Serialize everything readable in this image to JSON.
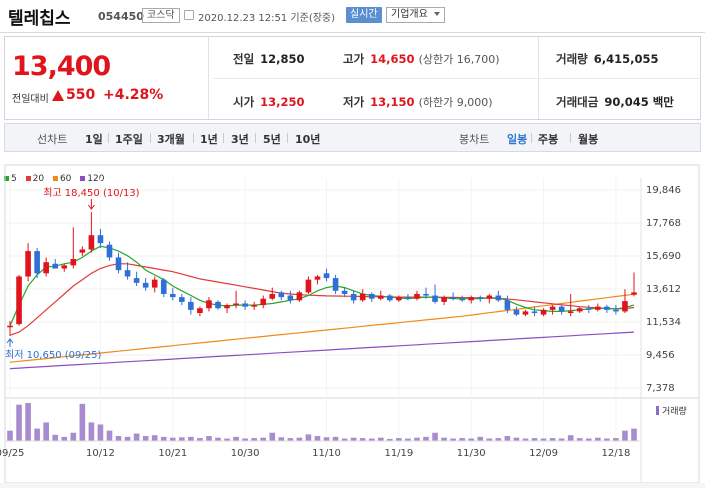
{
  "header": {
    "name": "텔레칩스",
    "code": "054450",
    "market": "코스닥",
    "time": "2020.12.23 12:51 기준(장중)",
    "realtime": "실시간",
    "overview": "기업개요"
  },
  "quote": {
    "price": "13,400",
    "change_label": "전일대비",
    "change": "550",
    "change_pct": "+4.28%",
    "prev_label": "전일",
    "prev": "12,850",
    "high_label": "고가",
    "high": "14,650",
    "upper_limit": "(상한가 16,700)",
    "volume_label": "거래량",
    "volume": "6,415,055",
    "open_label": "시가",
    "open": "13,250",
    "low_label": "저가",
    "low": "13,150",
    "lower_limit": "(하한가 9,000)",
    "amount_label": "거래대금",
    "amount": "90,045 백만"
  },
  "tabs": {
    "line_label": "선차트",
    "line_periods": [
      "1일",
      "1주일",
      "3개월",
      "1년",
      "3년",
      "5년",
      "10년"
    ],
    "candle_label": "봉차트",
    "candle_periods": [
      "일봉",
      "주봉",
      "월봉"
    ],
    "selected": "일봉"
  },
  "chart_data": {
    "type": "candlestick",
    "legend": [
      {
        "name": "5",
        "color": "#26a62b"
      },
      {
        "name": "20",
        "color": "#e03a3a"
      },
      {
        "name": "60",
        "color": "#f08a1c"
      },
      {
        "name": "120",
        "color": "#8b4fc0"
      }
    ],
    "y_ticks": [
      19846,
      17768,
      15690,
      13612,
      11534,
      9456,
      7378
    ],
    "y_tick_labels": [
      "19,846",
      "17,768",
      "15,690",
      "13,612",
      "11,534",
      "9,456",
      "7,378"
    ],
    "x_tick_labels": [
      "09/25",
      "10/12",
      "10/21",
      "10/30",
      "11/10",
      "11/19",
      "11/30",
      "12/09",
      "12/18"
    ],
    "high_annotation": "최고 18,450 (10/13)",
    "low_annotation": "최저 10,650 (09/25)",
    "volume_label": "거래량",
    "candles": [
      {
        "o": 11200,
        "h": 11600,
        "l": 10650,
        "c": 11300
      },
      {
        "o": 11400,
        "h": 14500,
        "l": 11300,
        "c": 14400
      },
      {
        "o": 14400,
        "h": 16500,
        "l": 14100,
        "c": 16000
      },
      {
        "o": 16000,
        "h": 16200,
        "l": 14300,
        "c": 14600
      },
      {
        "o": 14600,
        "h": 15600,
        "l": 14400,
        "c": 15300
      },
      {
        "o": 15200,
        "h": 15500,
        "l": 14900,
        "c": 14900
      },
      {
        "o": 14900,
        "h": 15200,
        "l": 14700,
        "c": 15100
      },
      {
        "o": 15100,
        "h": 17500,
        "l": 14900,
        "c": 15500
      },
      {
        "o": 15900,
        "h": 16300,
        "l": 15700,
        "c": 16100
      },
      {
        "o": 16100,
        "h": 18450,
        "l": 15900,
        "c": 17000
      },
      {
        "o": 17000,
        "h": 17400,
        "l": 16200,
        "c": 16500
      },
      {
        "o": 16400,
        "h": 16600,
        "l": 15400,
        "c": 15600
      },
      {
        "o": 15600,
        "h": 15900,
        "l": 14600,
        "c": 14800
      },
      {
        "o": 14800,
        "h": 15300,
        "l": 14200,
        "c": 14400
      },
      {
        "o": 14300,
        "h": 14700,
        "l": 13800,
        "c": 14000
      },
      {
        "o": 14000,
        "h": 14300,
        "l": 13500,
        "c": 13700
      },
      {
        "o": 13700,
        "h": 14400,
        "l": 13400,
        "c": 14200
      },
      {
        "o": 14200,
        "h": 14300,
        "l": 13100,
        "c": 13300
      },
      {
        "o": 13300,
        "h": 13700,
        "l": 12900,
        "c": 13100
      },
      {
        "o": 13100,
        "h": 13300,
        "l": 12600,
        "c": 12800
      },
      {
        "o": 12800,
        "h": 13100,
        "l": 12000,
        "c": 12300
      },
      {
        "o": 12100,
        "h": 12500,
        "l": 11900,
        "c": 12400
      },
      {
        "o": 12400,
        "h": 13100,
        "l": 12200,
        "c": 12900
      },
      {
        "o": 12800,
        "h": 12900,
        "l": 12300,
        "c": 12400
      },
      {
        "o": 12400,
        "h": 12700,
        "l": 12100,
        "c": 12600
      },
      {
        "o": 12600,
        "h": 13500,
        "l": 12400,
        "c": 12700
      },
      {
        "o": 12700,
        "h": 12900,
        "l": 12300,
        "c": 12500
      },
      {
        "o": 12500,
        "h": 12800,
        "l": 12300,
        "c": 12600
      },
      {
        "o": 12600,
        "h": 13200,
        "l": 12400,
        "c": 13000
      },
      {
        "o": 13000,
        "h": 13700,
        "l": 12900,
        "c": 13300
      },
      {
        "o": 13400,
        "h": 13500,
        "l": 12900,
        "c": 13100
      },
      {
        "o": 13200,
        "h": 13500,
        "l": 12700,
        "c": 12900
      },
      {
        "o": 12900,
        "h": 13500,
        "l": 12800,
        "c": 13400
      },
      {
        "o": 13400,
        "h": 14400,
        "l": 13300,
        "c": 14200
      },
      {
        "o": 14200,
        "h": 14500,
        "l": 13900,
        "c": 14400
      },
      {
        "o": 14600,
        "h": 14900,
        "l": 14100,
        "c": 14300
      },
      {
        "o": 14300,
        "h": 14500,
        "l": 13300,
        "c": 13500
      },
      {
        "o": 13500,
        "h": 13700,
        "l": 13100,
        "c": 13300
      },
      {
        "o": 13300,
        "h": 13500,
        "l": 12700,
        "c": 12900
      },
      {
        "o": 12900,
        "h": 13600,
        "l": 12800,
        "c": 13300
      },
      {
        "o": 13300,
        "h": 13400,
        "l": 12800,
        "c": 13000
      },
      {
        "o": 13000,
        "h": 13500,
        "l": 12900,
        "c": 13200
      },
      {
        "o": 13200,
        "h": 13300,
        "l": 12800,
        "c": 12900
      },
      {
        "o": 12900,
        "h": 13200,
        "l": 12800,
        "c": 13100
      },
      {
        "o": 13100,
        "h": 13300,
        "l": 12900,
        "c": 13000
      },
      {
        "o": 13000,
        "h": 13500,
        "l": 12900,
        "c": 13300
      },
      {
        "o": 13300,
        "h": 13700,
        "l": 13000,
        "c": 13200
      },
      {
        "o": 13200,
        "h": 13900,
        "l": 12700,
        "c": 12800
      },
      {
        "o": 12800,
        "h": 13200,
        "l": 12600,
        "c": 13100
      },
      {
        "o": 13100,
        "h": 13400,
        "l": 12900,
        "c": 13000
      },
      {
        "o": 13000,
        "h": 13200,
        "l": 12800,
        "c": 12900
      },
      {
        "o": 12900,
        "h": 13200,
        "l": 12700,
        "c": 13100
      },
      {
        "o": 13100,
        "h": 13200,
        "l": 12800,
        "c": 13000
      },
      {
        "o": 13000,
        "h": 13300,
        "l": 12700,
        "c": 13200
      },
      {
        "o": 13200,
        "h": 13500,
        "l": 12800,
        "c": 12900
      },
      {
        "o": 12900,
        "h": 13200,
        "l": 12100,
        "c": 12300
      },
      {
        "o": 12300,
        "h": 12500,
        "l": 11900,
        "c": 12000
      },
      {
        "o": 12000,
        "h": 12300,
        "l": 11900,
        "c": 12200
      },
      {
        "o": 12200,
        "h": 12500,
        "l": 11900,
        "c": 12100
      },
      {
        "o": 12000,
        "h": 12400,
        "l": 11900,
        "c": 12300
      },
      {
        "o": 12300,
        "h": 12600,
        "l": 12000,
        "c": 12500
      },
      {
        "o": 12500,
        "h": 12600,
        "l": 12000,
        "c": 12200
      },
      {
        "o": 12100,
        "h": 13300,
        "l": 11900,
        "c": 12200
      },
      {
        "o": 12200,
        "h": 12500,
        "l": 12100,
        "c": 12400
      },
      {
        "o": 12400,
        "h": 12600,
        "l": 12100,
        "c": 12300
      },
      {
        "o": 12300,
        "h": 12700,
        "l": 12200,
        "c": 12500
      },
      {
        "o": 12500,
        "h": 12600,
        "l": 12100,
        "c": 12300
      },
      {
        "o": 12300,
        "h": 12600,
        "l": 12000,
        "c": 12200
      },
      {
        "o": 12200,
        "h": 13600,
        "l": 12100,
        "c": 12850
      },
      {
        "o": 13250,
        "h": 14650,
        "l": 13150,
        "c": 13400
      }
    ],
    "volumes": [
      25,
      88,
      92,
      30,
      45,
      15,
      10,
      20,
      90,
      45,
      40,
      25,
      12,
      10,
      18,
      12,
      14,
      10,
      8,
      9,
      10,
      7,
      12,
      8,
      6,
      10,
      6,
      7,
      8,
      20,
      9,
      7,
      8,
      16,
      12,
      9,
      10,
      6,
      8,
      7,
      6,
      8,
      5,
      7,
      6,
      8,
      10,
      20,
      8,
      6,
      7,
      6,
      10,
      6,
      7,
      12,
      8,
      6,
      7,
      6,
      7,
      6,
      14,
      7,
      6,
      8,
      6,
      7,
      25,
      30
    ],
    "ma5": [
      11300,
      12600,
      13800,
      14500,
      15000,
      15050,
      15200,
      15300,
      15600,
      16000,
      16300,
      16200,
      16000,
      15700,
      15300,
      14800,
      14500,
      14200,
      13800,
      13500,
      13200,
      12900,
      12700,
      12600,
      12550,
      12600,
      12600,
      12600,
      12650,
      12700,
      12800,
      12900,
      13000,
      13200,
      13500,
      13700,
      13800,
      13700,
      13500,
      13300,
      13200,
      13150,
      13100,
      13050,
      13000,
      13050,
      13100,
      13100,
      13050,
      13000,
      13000,
      13000,
      13000,
      13050,
      13050,
      12900,
      12650,
      12450,
      12300,
      12250,
      12200,
      12200,
      12250,
      12300,
      12350,
      12400,
      12400,
      12350,
      12450,
      12600
    ]
  }
}
